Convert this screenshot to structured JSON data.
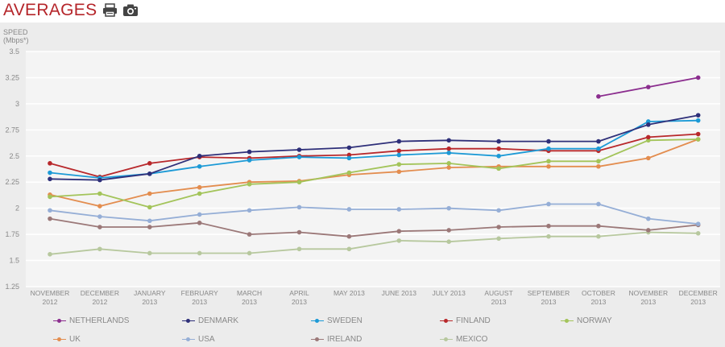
{
  "header": {
    "title": "AVERAGES",
    "print_icon": "print-icon",
    "camera_icon": "camera-icon"
  },
  "colors": {
    "title": "#b5252a",
    "plot_bg": "#f4f4f4",
    "panel_bg": "#ececec"
  },
  "chart_data": {
    "type": "line",
    "ylabel_line1": "SPEED",
    "ylabel_line2": "(Mbps*)",
    "xlabel": "",
    "ylim": [
      1.25,
      3.5
    ],
    "yticks": [
      "3.5",
      "3.25",
      "3",
      "2.75",
      "2.5",
      "2.25",
      "2",
      "1.75",
      "1.5",
      "1.25"
    ],
    "grid": true,
    "legend_position": "bottom",
    "categories": [
      [
        "NOVEMBER",
        "2012"
      ],
      [
        "DECEMBER",
        "2012"
      ],
      [
        "JANUARY",
        "2013"
      ],
      [
        "FEBRUARY",
        "2013"
      ],
      [
        "MARCH",
        "2013"
      ],
      [
        "APRIL",
        "2013"
      ],
      [
        "MAY 2013",
        ""
      ],
      [
        "JUNE 2013",
        ""
      ],
      [
        "JULY 2013",
        ""
      ],
      [
        "AUGUST",
        "2013"
      ],
      [
        "SEPTEMBER",
        "2013"
      ],
      [
        "OCTOBER",
        "2013"
      ],
      [
        "NOVEMBER",
        "2013"
      ],
      [
        "DECEMBER",
        "2013"
      ]
    ],
    "series": [
      {
        "name": "NETHERLANDS",
        "color": "#8b2d8e",
        "values": [
          null,
          null,
          null,
          null,
          null,
          null,
          null,
          null,
          null,
          null,
          null,
          3.07,
          3.16,
          3.25
        ]
      },
      {
        "name": "DENMARK",
        "color": "#2e2f79",
        "values": [
          2.28,
          2.27,
          2.33,
          2.5,
          2.54,
          2.56,
          2.58,
          2.64,
          2.65,
          2.64,
          2.64,
          2.64,
          2.8,
          2.89
        ]
      },
      {
        "name": "SWEDEN",
        "color": "#1c9ad6",
        "values": [
          2.34,
          2.29,
          2.33,
          2.4,
          2.46,
          2.49,
          2.48,
          2.51,
          2.53,
          2.5,
          2.57,
          2.57,
          2.83,
          2.84
        ]
      },
      {
        "name": "FINLAND",
        "color": "#b8282b",
        "values": [
          2.43,
          2.3,
          2.43,
          2.49,
          2.48,
          2.5,
          2.51,
          2.55,
          2.57,
          2.57,
          2.55,
          2.55,
          2.68,
          2.71
        ]
      },
      {
        "name": "NORWAY",
        "color": "#a3c45a",
        "values": [
          2.11,
          2.14,
          2.01,
          2.14,
          2.23,
          2.25,
          2.34,
          2.42,
          2.43,
          2.38,
          2.45,
          2.45,
          2.65,
          2.66
        ]
      },
      {
        "name": "UK",
        "color": "#e38d4f",
        "values": [
          2.13,
          2.02,
          2.14,
          2.2,
          2.25,
          2.26,
          2.32,
          2.35,
          2.39,
          2.4,
          2.4,
          2.4,
          2.48,
          2.66
        ]
      },
      {
        "name": "USA",
        "color": "#95aed6",
        "values": [
          1.98,
          1.92,
          1.88,
          1.94,
          1.98,
          2.01,
          1.99,
          1.99,
          2.0,
          1.98,
          2.04,
          2.04,
          1.9,
          1.85
        ]
      },
      {
        "name": "IRELAND",
        "color": "#9b7878",
        "values": [
          1.9,
          1.82,
          1.82,
          1.86,
          1.75,
          1.77,
          1.73,
          1.78,
          1.79,
          1.82,
          1.83,
          1.83,
          1.79,
          1.84
        ]
      },
      {
        "name": "MEXICO",
        "color": "#b7c89e",
        "values": [
          1.56,
          1.61,
          1.57,
          1.57,
          1.57,
          1.61,
          1.61,
          1.69,
          1.68,
          1.71,
          1.73,
          1.73,
          1.77,
          1.76
        ]
      }
    ]
  }
}
